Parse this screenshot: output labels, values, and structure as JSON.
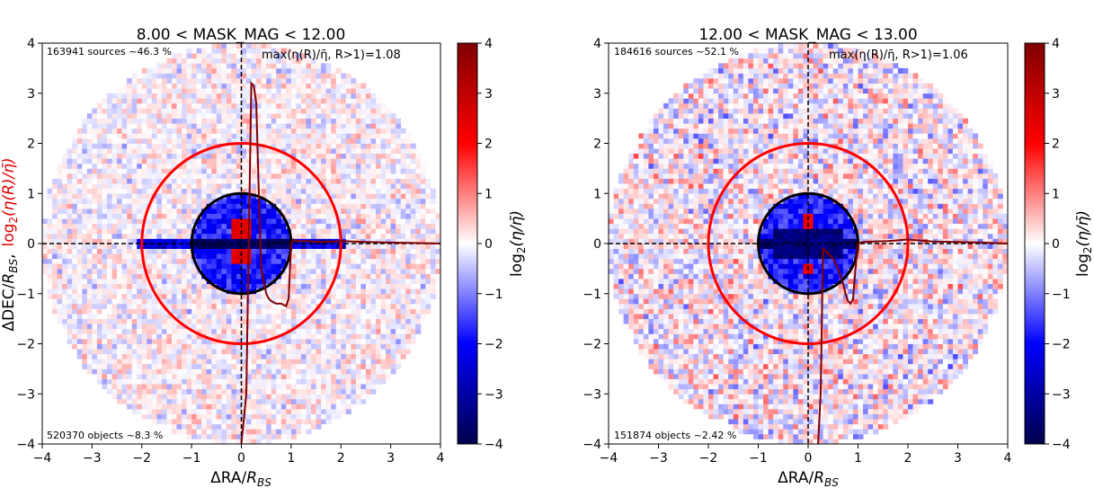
{
  "chart_data": [
    {
      "type": "heatmap",
      "title": "8.00 < MASK_MAG < 12.00",
      "xlabel_main": "ΔRA/",
      "xlabel_sub": "R",
      "xlabel_subsub": "BS",
      "ylabel_black_main": "ΔDEC/",
      "ylabel_black_sub": "R",
      "ylabel_black_subsub": "BS",
      "ylabel_black_comma": ",",
      "ylabel_red_log": "log",
      "ylabel_red_two": "2",
      "ylabel_red_body": "(η(R)/η̄)",
      "xlim": [
        -4,
        4
      ],
      "ylim": [
        -4,
        4
      ],
      "xticks": [
        "−4",
        "−3",
        "−2",
        "−1",
        "0",
        "1",
        "2",
        "3",
        "4"
      ],
      "yticks": [
        "−4",
        "−3",
        "−2",
        "−1",
        "0",
        "1",
        "2",
        "3",
        "4"
      ],
      "colorbar": {
        "min": -4,
        "max": 4,
        "ticks": [
          "−4",
          "−3",
          "−2",
          "−1",
          "0",
          "1",
          "2",
          "3",
          "4"
        ],
        "label_log": "log",
        "label_two": "2",
        "label_body": "(η/η̄)"
      },
      "annotation_top_left": "163941 sources ~46.3 %",
      "annotation_top_right": "max(η(R)/η̄, R>1)=1.08",
      "annotation_bottom_left": "520370 objects ~8.3 %",
      "circles": {
        "inner_radius": 1,
        "outer_radius": 2,
        "field_radius": 4
      },
      "profile": {
        "r": [
          0.0,
          0.1,
          0.2,
          0.25,
          0.3,
          0.35,
          0.4,
          0.5,
          0.55,
          0.6,
          0.7,
          0.8,
          0.9,
          0.95,
          1.0,
          1.05,
          1.1,
          1.3,
          1.6,
          2.0,
          2.5,
          3.0,
          3.5,
          4.0
        ],
        "log2_ratio": [
          -4.0,
          -3.0,
          3.2,
          3.15,
          2.8,
          1.0,
          -0.5,
          -1.0,
          -1.1,
          -1.15,
          -1.2,
          -1.2,
          -1.25,
          -1.1,
          0.0,
          0.08,
          0.05,
          0.05,
          0.03,
          0.05,
          0.03,
          0.02,
          0.01,
          0.0
        ]
      }
    },
    {
      "type": "heatmap",
      "title": "12.00 < MASK_MAG < 13.00",
      "xlabel_main": "ΔRA/",
      "xlabel_sub": "R",
      "xlabel_subsub": "BS",
      "xlim": [
        -4,
        4
      ],
      "ylim": [
        -4,
        4
      ],
      "xticks": [
        "−4",
        "−3",
        "−2",
        "−1",
        "0",
        "1",
        "2",
        "3",
        "4"
      ],
      "yticks": [
        "−4",
        "−3",
        "−2",
        "−1",
        "0",
        "1",
        "2",
        "3",
        "4"
      ],
      "colorbar": {
        "min": -4,
        "max": 4,
        "ticks": [
          "−4",
          "−3",
          "−2",
          "−1",
          "0",
          "1",
          "2",
          "3",
          "4"
        ],
        "label_log": "log",
        "label_two": "2",
        "label_body": "(η/η̄)"
      },
      "annotation_top_left": "184616 sources ~52.1 %",
      "annotation_top_right": "max(η(R)/η̄, R>1)=1.06",
      "annotation_bottom_left": "151874 objects ~2.42 %",
      "circles": {
        "inner_radius": 1,
        "outer_radius": 2,
        "field_radius": 4
      },
      "profile": {
        "r": [
          0.2,
          0.25,
          0.3,
          0.4,
          0.5,
          0.6,
          0.7,
          0.75,
          0.8,
          0.85,
          0.9,
          0.95,
          1.0,
          1.1,
          1.3,
          1.6,
          2.0,
          2.5,
          3.0,
          3.5,
          4.0
        ],
        "log2_ratio": [
          -4.0,
          -3.0,
          -0.1,
          -0.2,
          -0.3,
          -0.5,
          -0.8,
          -1.0,
          -1.15,
          -1.2,
          -1.1,
          -0.5,
          0.0,
          0.03,
          0.04,
          0.05,
          0.08,
          0.04,
          0.03,
          0.02,
          0.0
        ]
      }
    }
  ]
}
